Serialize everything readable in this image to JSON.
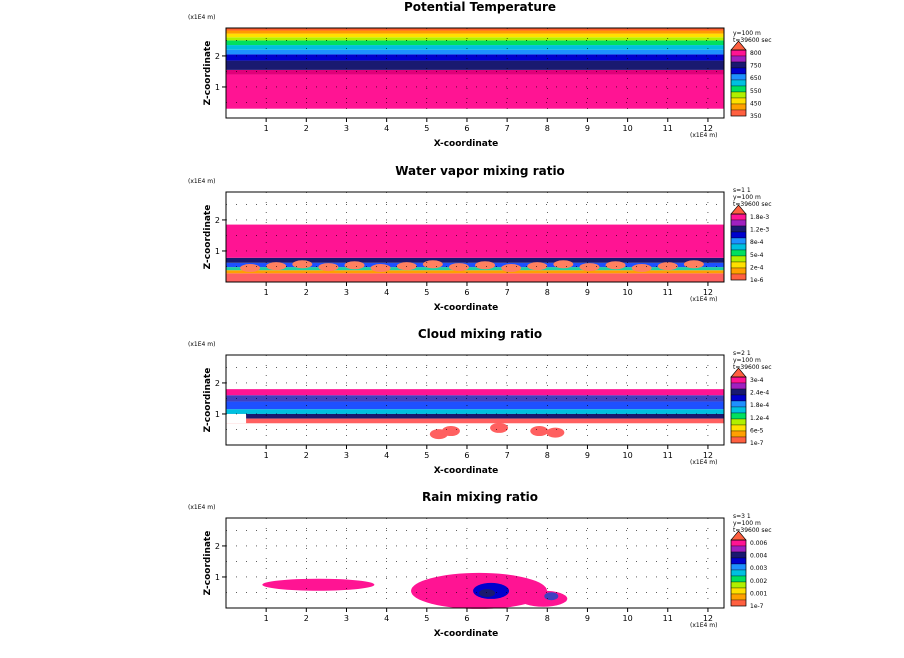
{
  "chart_data": [
    {
      "type": "heatmap",
      "title": "Potential Temperature",
      "xlabel": "X-coordinate",
      "ylabel": "Z-coordinate",
      "x_scale_note": "(x1E4 m)",
      "z_scale_note": "(x1E4 m)",
      "xlim": [
        0,
        12.4
      ],
      "ylim": [
        0,
        2.9
      ],
      "x_ticks": [
        "1",
        "2",
        "3",
        "4",
        "5",
        "6",
        "7",
        "8",
        "9",
        "10",
        "11",
        "12"
      ],
      "z_ticks": [
        "1",
        "2"
      ],
      "info_lines": [
        "y=100 m",
        "t=39600 sec"
      ],
      "legend_labels": [
        "800",
        "750",
        "650",
        "550",
        "450",
        "350"
      ],
      "bands": [
        {
          "z0": 0.3,
          "z1": 1.4,
          "color": "#ff1493"
        },
        {
          "z0": 1.4,
          "z1": 1.55,
          "color": "#e0007a"
        },
        {
          "z0": 1.55,
          "z1": 1.85,
          "color": "#191970"
        },
        {
          "z0": 1.85,
          "z1": 2.05,
          "color": "#0000cd"
        },
        {
          "z0": 2.05,
          "z1": 2.2,
          "color": "#1e90ff"
        },
        {
          "z0": 2.2,
          "z1": 2.35,
          "color": "#00c0e0"
        },
        {
          "z0": 2.35,
          "z1": 2.5,
          "color": "#00e060"
        },
        {
          "z0": 2.5,
          "z1": 2.6,
          "color": "#b0f000"
        },
        {
          "z0": 2.6,
          "z1": 2.72,
          "color": "#ffe000"
        },
        {
          "z0": 2.72,
          "z1": 2.82,
          "color": "#ff9a00"
        },
        {
          "z0": 2.82,
          "z1": 2.9,
          "color": "#ff6030"
        }
      ]
    },
    {
      "type": "heatmap",
      "title": "Water vapor mixing ratio",
      "xlabel": "X-coordinate",
      "ylabel": "Z-coordinate",
      "x_scale_note": "(x1E4 m)",
      "z_scale_note": "(x1E4 m)",
      "xlim": [
        0,
        12.4
      ],
      "ylim": [
        0,
        2.9
      ],
      "x_ticks": [
        "1",
        "2",
        "3",
        "4",
        "5",
        "6",
        "7",
        "8",
        "9",
        "10",
        "11",
        "12"
      ],
      "z_ticks": [
        "1",
        "2"
      ],
      "info_lines": [
        "s=1 1",
        "y=100 m",
        "t=39600 sec"
      ],
      "legend_labels": [
        "1.8e-3",
        "1.2e-3",
        "8e-4",
        "5e-4",
        "2e-4",
        "1e-6"
      ],
      "bands": [
        {
          "z0": 0.0,
          "z1": 0.28,
          "color": "#ff6060"
        },
        {
          "z0": 0.28,
          "z1": 0.38,
          "color": "#ffa000"
        },
        {
          "z0": 0.38,
          "z1": 0.48,
          "color": "#20d0a0"
        },
        {
          "z0": 0.48,
          "z1": 0.62,
          "color": "#1e50ff"
        },
        {
          "z0": 0.62,
          "z1": 0.78,
          "color": "#191970"
        },
        {
          "z0": 0.78,
          "z1": 1.85,
          "color": "#ff1493"
        }
      ]
    },
    {
      "type": "heatmap",
      "title": "Cloud mixing ratio",
      "xlabel": "X-coordinate",
      "ylabel": "Z-coordinate",
      "x_scale_note": "(x1E4 m)",
      "z_scale_note": "(x1E4 m)",
      "xlim": [
        0,
        12.4
      ],
      "ylim": [
        0,
        2.9
      ],
      "x_ticks": [
        "1",
        "2",
        "3",
        "4",
        "5",
        "6",
        "7",
        "8",
        "9",
        "10",
        "11",
        "12"
      ],
      "z_ticks": [
        "1",
        "2"
      ],
      "info_lines": [
        "s=2 1",
        "y=100 m",
        "t=39600 sec"
      ],
      "legend_labels": [
        "3e-4",
        "2.4e-4",
        "1.8e-4",
        "1.2e-4",
        "6e-5",
        "1e-7"
      ],
      "bands": [
        {
          "z0": 1.6,
          "z1": 1.8,
          "color": "#ff1493"
        },
        {
          "z0": 1.4,
          "z1": 1.6,
          "color": "#4040c0"
        },
        {
          "z0": 1.15,
          "z1": 1.4,
          "color": "#1e50ff"
        },
        {
          "z0": 1.0,
          "z1": 1.15,
          "color": "#00c0e0"
        },
        {
          "z0": 0.85,
          "z1": 1.0,
          "color": "#191970"
        },
        {
          "z0": 0.7,
          "z1": 0.85,
          "color": "#ff6060"
        }
      ]
    },
    {
      "type": "heatmap",
      "title": "Rain mixing ratio",
      "xlabel": "X-coordinate",
      "ylabel": "Z-coordinate",
      "x_scale_note": "(x1E4 m)",
      "z_scale_note": "(x1E4 m)",
      "xlim": [
        0,
        12.4
      ],
      "ylim": [
        0,
        2.9
      ],
      "x_ticks": [
        "1",
        "2",
        "3",
        "4",
        "5",
        "6",
        "7",
        "8",
        "9",
        "10",
        "11",
        "12"
      ],
      "z_ticks": [
        "1",
        "2"
      ],
      "info_lines": [
        "s=3 1",
        "y=100 m",
        "t=39600 sec"
      ],
      "legend_labels": [
        "0.006",
        "0.004",
        "0.003",
        "0.002",
        "0.001",
        "1e-7"
      ],
      "bands": []
    }
  ],
  "legend_colors": [
    "#ff6040",
    "#ffa000",
    "#ffe000",
    "#b0f000",
    "#00e060",
    "#00c0e0",
    "#1e90ff",
    "#0000cd",
    "#191970",
    "#a020c0",
    "#ff1493"
  ]
}
